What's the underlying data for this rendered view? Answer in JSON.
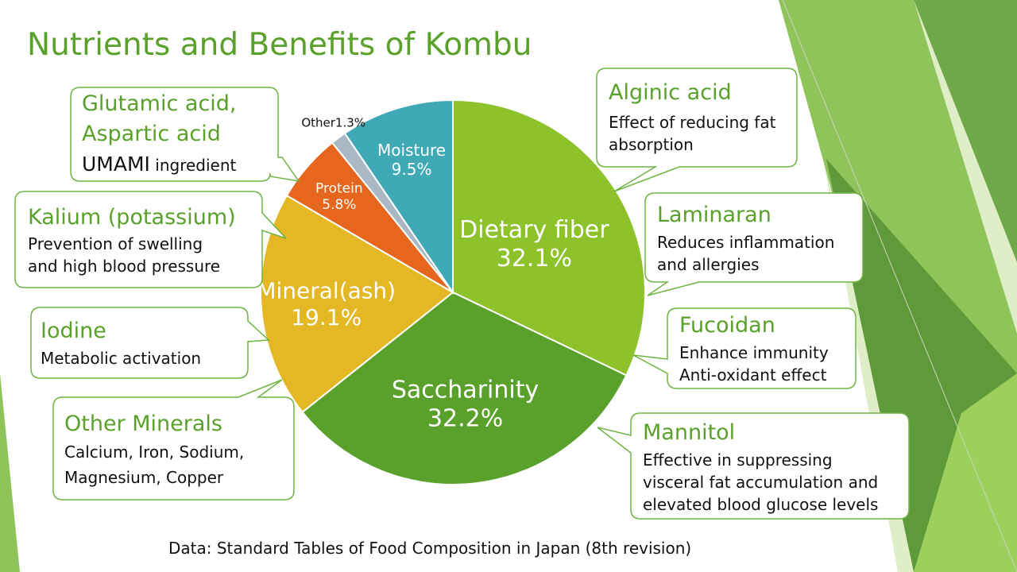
{
  "page_title": "Nutrients and Benefits of Kombu",
  "source": "Data: Standard Tables of Food Composition in Japan (8th revision)",
  "colors": {
    "accent": "#5aa12c",
    "callout_border": "#6fb443"
  },
  "chart_data": {
    "type": "pie",
    "title": "Nutrients and Benefits of Kombu",
    "slices": [
      {
        "label": "Dietary fiber",
        "value": 32.1,
        "display": "32.1%",
        "color": "#8dc22b",
        "text_color": "#ffffff"
      },
      {
        "label": "Saccharinity",
        "value": 32.2,
        "display": "32.2%",
        "color": "#5aa12c",
        "text_color": "#ffffff"
      },
      {
        "label": "Mineral(ash)",
        "value": 19.1,
        "display": "19.1%",
        "color": "#e3b824",
        "text_color": "#ffffff"
      },
      {
        "label": "Protein",
        "value": 5.8,
        "display": "5.8%",
        "color": "#e5661c",
        "text_color": "#ffffff"
      },
      {
        "label": "Other",
        "value": 1.3,
        "display": "1.3%",
        "color": "#a9b8c4",
        "text_color": "#111111"
      },
      {
        "label": "Moisture",
        "value": 9.5,
        "display": "9.5%",
        "color": "#3fa9b6",
        "text_color": "#ffffff"
      }
    ]
  },
  "callouts": {
    "umami": {
      "head1": "Glutamic acid,",
      "head2": "Aspartic acid",
      "strong": "UMAMI",
      "rest": " ingredient"
    },
    "kalium": {
      "head": "Kalium (potassium)",
      "body1": "Prevention of swelling",
      "body2": "and high blood pressure"
    },
    "iodine": {
      "head": "Iodine",
      "body1": "Metabolic activation"
    },
    "other_minerals": {
      "head": "Other Minerals",
      "body1": "Calcium, Iron, Sodium,",
      "body2": "Magnesium, Copper"
    },
    "alginic": {
      "head": "Alginic acid",
      "body1": "Effect of reducing fat",
      "body2": "absorption"
    },
    "laminaran": {
      "head": "Laminaran",
      "body1": "Reduces inflammation",
      "body2": "and allergies"
    },
    "fucoidan": {
      "head": "Fucoidan",
      "body1": "Enhance immunity",
      "body2": "Anti-oxidant effect"
    },
    "mannitol": {
      "head": "Mannitol",
      "body1": "Effective in suppressing",
      "body2": "visceral fat accumulation and",
      "body3": "elevated blood glucose levels"
    }
  }
}
